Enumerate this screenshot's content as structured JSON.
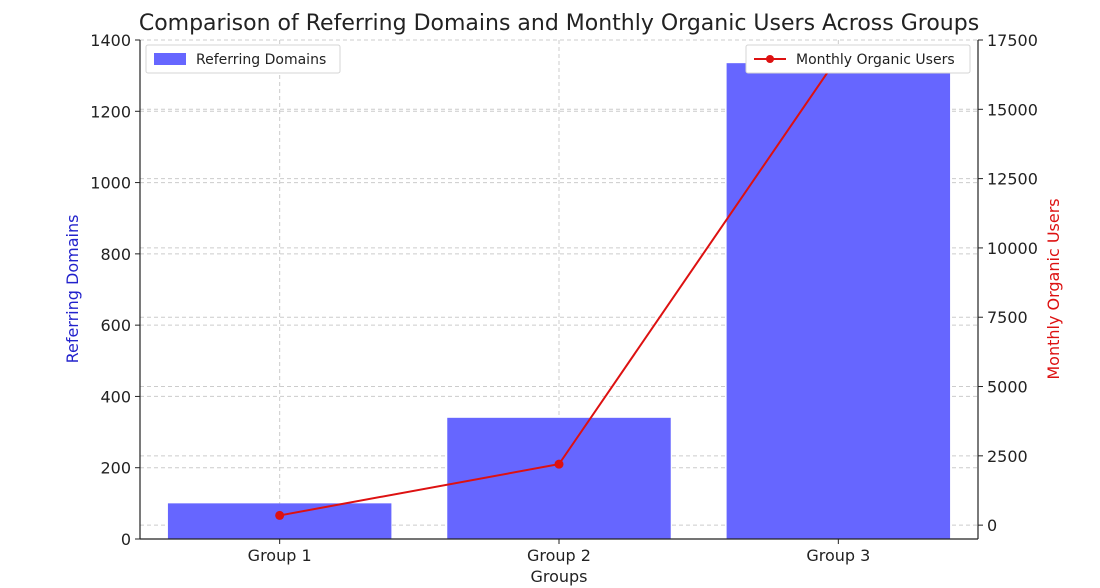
{
  "chart_data": {
    "type": "bar",
    "title": "Comparison of Referring Domains and Monthly Organic Users Across Groups",
    "xlabel": "Groups",
    "categories": [
      "Group 1",
      "Group 2",
      "Group 3"
    ],
    "grid": true,
    "series": [
      {
        "name": "Referring Domains",
        "type": "bar",
        "axis": "left",
        "color": "#6666ff",
        "values": [
          100,
          340,
          1335
        ]
      },
      {
        "name": "Monthly Organic Users",
        "type": "line",
        "axis": "right",
        "color": "#dd1111",
        "marker": "circle",
        "values": [
          350,
          2200,
          16900
        ]
      }
    ],
    "y_left": {
      "label": "Referring Domains",
      "label_color": "#2222cc",
      "range": [
        0,
        1400
      ],
      "ticks": [
        0,
        200,
        400,
        600,
        800,
        1000,
        1200,
        1400
      ]
    },
    "y_right": {
      "label": "Monthly Organic Users",
      "label_color": "#dd1111",
      "range": [
        -500,
        17500
      ],
      "ticks": [
        0,
        2500,
        5000,
        7500,
        10000,
        12500,
        15000,
        17500
      ]
    },
    "legend": [
      {
        "label": "Referring Domains",
        "placement": "top-left"
      },
      {
        "label": "Monthly Organic Users",
        "placement": "top-right"
      }
    ]
  }
}
